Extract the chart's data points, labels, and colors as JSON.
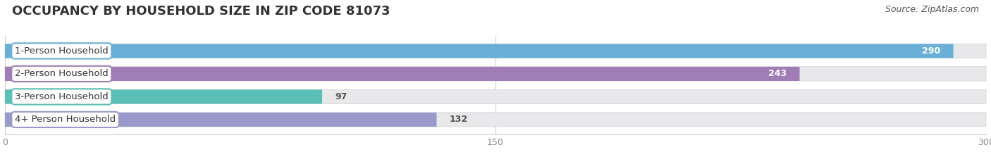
{
  "title": "OCCUPANCY BY HOUSEHOLD SIZE IN ZIP CODE 81073",
  "source": "Source: ZipAtlas.com",
  "categories": [
    "1-Person Household",
    "2-Person Household",
    "3-Person Household",
    "4+ Person Household"
  ],
  "values": [
    290,
    243,
    97,
    132
  ],
  "bar_colors": [
    "#6aafd6",
    "#a07db5",
    "#5cbfb5",
    "#9999cc"
  ],
  "xlim": [
    0,
    300
  ],
  "xticks": [
    0,
    150,
    300
  ],
  "bar_height": 0.62,
  "background_color": "#ffffff",
  "bar_bg_color": "#e8e8ea",
  "title_fontsize": 13,
  "label_fontsize": 9.5,
  "value_fontsize": 9,
  "source_fontsize": 9
}
